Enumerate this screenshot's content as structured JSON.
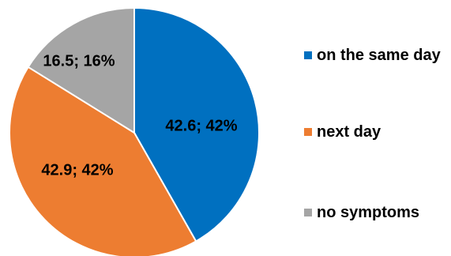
{
  "chart_data": {
    "type": "pie",
    "slices": [
      {
        "name": "on the same day",
        "value": 42.6,
        "percent": 42,
        "label": "42.6; 42%",
        "color": "#0070C0"
      },
      {
        "name": "next day",
        "value": 42.9,
        "percent": 42,
        "label": "42.9; 42%",
        "color": "#ED7D31"
      },
      {
        "name": "no symptoms",
        "value": 16.5,
        "percent": 16,
        "label": "16.5; 16%",
        "color": "#A5A5A5"
      }
    ],
    "legend_position": "right",
    "start": "top (12 o'clock), clockwise"
  }
}
